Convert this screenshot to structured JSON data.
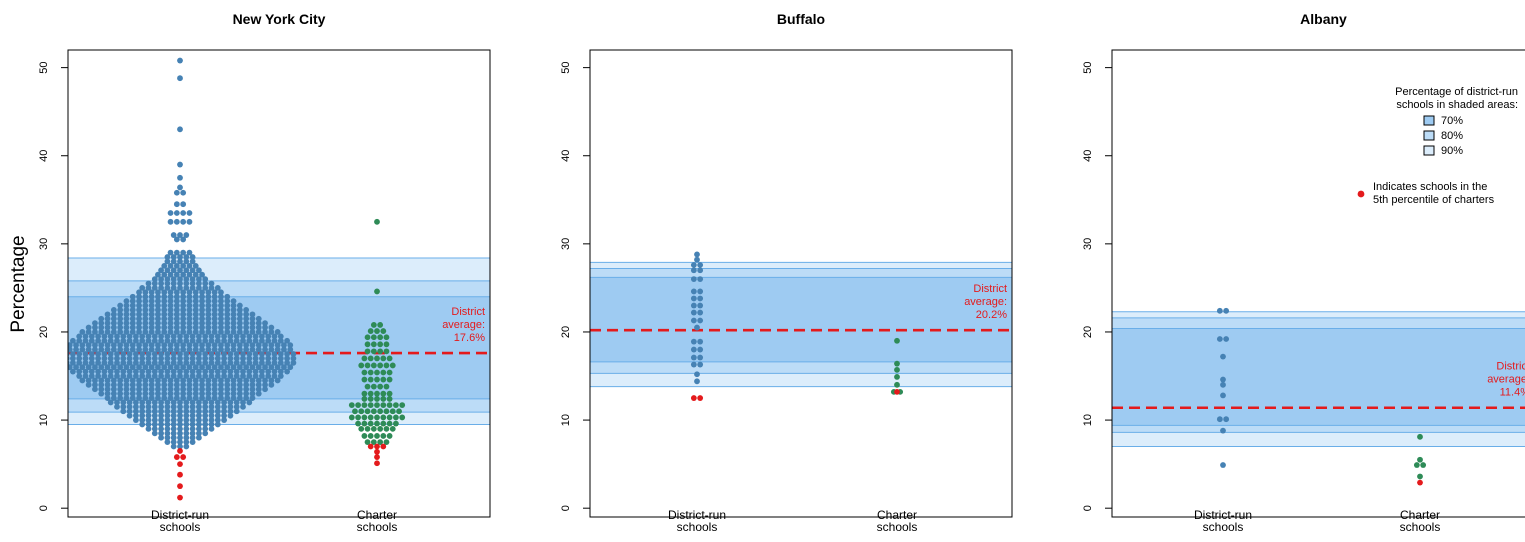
{
  "ylabel": "Percentage",
  "colors": {
    "district": "#4682b4",
    "charter": "#2e8b57",
    "fifth_percentile": "#e41a1c",
    "band_70": "#9ecbf2",
    "band_80": "#bcdcf7",
    "band_90": "#dcedfb",
    "band_edge": "#6aaee8",
    "average_line": "#e41a1c"
  },
  "legend": {
    "title_line1": "Percentage of district-run",
    "title_line2": "schools in shaded areas:",
    "items": [
      {
        "label": "70%",
        "color": "#9ecbf2"
      },
      {
        "label": "80%",
        "color": "#bcdcf7"
      },
      {
        "label": "90%",
        "color": "#dcedfb"
      }
    ],
    "dot_line1": "Indicates schools in the",
    "dot_line2": "5th percentile of charters"
  },
  "chart_data": [
    {
      "type": "scatter",
      "title": "New York City",
      "ylabel": "Percentage",
      "ylim": [
        -1,
        52
      ],
      "yticks": [
        0,
        10,
        20,
        30,
        40,
        50
      ],
      "categories": [
        "District-run schools",
        "Charter schools"
      ],
      "category_lines": [
        [
          "District-run",
          "schools"
        ],
        [
          "Charter",
          "schools"
        ]
      ],
      "district_average": 17.6,
      "average_label": [
        "District",
        "average:",
        "17.6%"
      ],
      "bands": {
        "p70": [
          12.4,
          24.0
        ],
        "p80": [
          10.9,
          25.8
        ],
        "p90": [
          9.5,
          28.4
        ]
      },
      "series": [
        {
          "name": "District-run schools",
          "bins": [
            [
              7,
              3
            ],
            [
              7.5,
              5
            ],
            [
              8,
              7
            ],
            [
              8.5,
              9
            ],
            [
              9,
              11
            ],
            [
              9.5,
              13
            ],
            [
              10,
              15
            ],
            [
              10.5,
              17
            ],
            [
              11,
              19
            ],
            [
              11.5,
              21
            ],
            [
              12,
              23
            ],
            [
              12.5,
              24
            ],
            [
              13,
              26
            ],
            [
              13.5,
              28
            ],
            [
              14,
              30
            ],
            [
              14.5,
              32
            ],
            [
              15,
              33
            ],
            [
              15.5,
              35
            ],
            [
              16,
              36
            ],
            [
              16.5,
              37
            ],
            [
              17,
              37
            ],
            [
              17.5,
              37
            ],
            [
              18,
              36
            ],
            [
              18.5,
              36
            ],
            [
              19,
              35
            ],
            [
              19.5,
              33
            ],
            [
              20,
              32
            ],
            [
              20.5,
              30
            ],
            [
              21,
              28
            ],
            [
              21.5,
              26
            ],
            [
              22,
              24
            ],
            [
              22.5,
              22
            ],
            [
              23,
              20
            ],
            [
              23.5,
              18
            ],
            [
              24,
              16
            ],
            [
              24.5,
              14
            ],
            [
              25,
              13
            ],
            [
              25.5,
              11
            ],
            [
              26,
              9
            ],
            [
              26.5,
              8
            ],
            [
              27,
              7
            ],
            [
              27.5,
              6
            ],
            [
              28,
              5
            ],
            [
              28.5,
              5
            ],
            [
              29,
              4
            ],
            [
              30.5,
              2
            ],
            [
              31,
              3
            ],
            [
              32.5,
              4
            ],
            [
              33.5,
              4
            ],
            [
              34.5,
              2
            ],
            [
              35.8,
              2
            ],
            [
              36.4,
              1
            ],
            [
              37.5,
              1
            ],
            [
              39,
              1
            ],
            [
              43,
              1
            ],
            [
              48.8,
              1
            ],
            [
              50.8,
              1
            ]
          ],
          "fifth_percentile": [
            1.2,
            2.5,
            3.8,
            5.0,
            5.8,
            5.8,
            6.5
          ]
        },
        {
          "name": "Charter schools",
          "bins": [
            [
              7.5,
              4
            ],
            [
              8.2,
              5
            ],
            [
              9,
              6
            ],
            [
              9.6,
              7
            ],
            [
              10.3,
              9
            ],
            [
              11,
              8
            ],
            [
              11.7,
              9
            ],
            [
              12.4,
              5
            ],
            [
              13,
              5
            ],
            [
              13.8,
              4
            ],
            [
              14.6,
              5
            ],
            [
              15.4,
              5
            ],
            [
              16.2,
              6
            ],
            [
              17,
              5
            ],
            [
              17.8,
              4
            ],
            [
              18.6,
              4
            ],
            [
              19.4,
              4
            ],
            [
              20.1,
              3
            ],
            [
              20.8,
              2
            ],
            [
              24.6,
              1
            ],
            [
              32.5,
              1
            ]
          ],
          "fifth_percentile": [
            5.1,
            5.8,
            6.4,
            7.0,
            7.0,
            7.0
          ]
        }
      ]
    },
    {
      "type": "scatter",
      "title": "Buffalo",
      "ylabel": "Percentage",
      "ylim": [
        -1,
        52
      ],
      "yticks": [
        0,
        10,
        20,
        30,
        40,
        50
      ],
      "categories": [
        "District-run schools",
        "Charter schools"
      ],
      "category_lines": [
        [
          "District-run",
          "schools"
        ],
        [
          "Charter",
          "schools"
        ]
      ],
      "district_average": 20.2,
      "average_label": [
        "District",
        "average:",
        "20.2%"
      ],
      "bands": {
        "p70": [
          16.6,
          26.2
        ],
        "p80": [
          15.3,
          27.2
        ],
        "p90": [
          13.8,
          27.9
        ]
      },
      "series": [
        {
          "name": "District-run schools",
          "bins": [
            [
              14.4,
              1
            ],
            [
              15.2,
              1
            ],
            [
              16.3,
              2
            ],
            [
              17.1,
              2
            ],
            [
              18.0,
              2
            ],
            [
              18.9,
              2
            ],
            [
              20.5,
              1
            ],
            [
              21.3,
              2
            ],
            [
              22.2,
              2
            ],
            [
              23.0,
              2
            ],
            [
              23.8,
              2
            ],
            [
              24.6,
              2
            ],
            [
              26.0,
              2
            ],
            [
              27.0,
              2
            ],
            [
              27.6,
              2
            ],
            [
              28.2,
              1
            ],
            [
              28.8,
              1
            ]
          ],
          "fifth_percentile": [
            12.5,
            12.5
          ]
        },
        {
          "name": "Charter schools",
          "bins": [
            [
              13.2,
              2
            ],
            [
              14.0,
              1
            ],
            [
              14.9,
              1
            ],
            [
              15.7,
              1
            ],
            [
              16.4,
              1
            ],
            [
              19.0,
              1
            ]
          ],
          "fifth_percentile": [
            13.2
          ]
        }
      ]
    },
    {
      "type": "scatter",
      "title": "Albany",
      "ylabel": "Percentage",
      "ylim": [
        -1,
        52
      ],
      "yticks": [
        0,
        10,
        20,
        30,
        40,
        50
      ],
      "categories": [
        "District-run schools",
        "Charter schools"
      ],
      "category_lines": [
        [
          "District-run",
          "schools"
        ],
        [
          "Charter",
          "schools"
        ]
      ],
      "district_average": 11.4,
      "average_label": [
        "District",
        "average:",
        "11.4%"
      ],
      "bands": {
        "p70": [
          9.4,
          20.4
        ],
        "p80": [
          8.6,
          21.6
        ],
        "p90": [
          7.0,
          22.3
        ]
      },
      "series": [
        {
          "name": "District-run schools",
          "bins": [
            [
              4.9,
              1
            ],
            [
              8.8,
              1
            ],
            [
              10.1,
              2
            ],
            [
              12.8,
              1
            ],
            [
              14.0,
              1
            ],
            [
              14.6,
              1
            ],
            [
              17.2,
              1
            ],
            [
              19.2,
              2
            ],
            [
              22.4,
              2
            ]
          ],
          "fifth_percentile": []
        },
        {
          "name": "Charter schools",
          "bins": [
            [
              3.6,
              1
            ],
            [
              4.9,
              2
            ],
            [
              5.5,
              1
            ],
            [
              8.1,
              1
            ]
          ],
          "fifth_percentile": [
            2.9
          ]
        }
      ]
    }
  ]
}
